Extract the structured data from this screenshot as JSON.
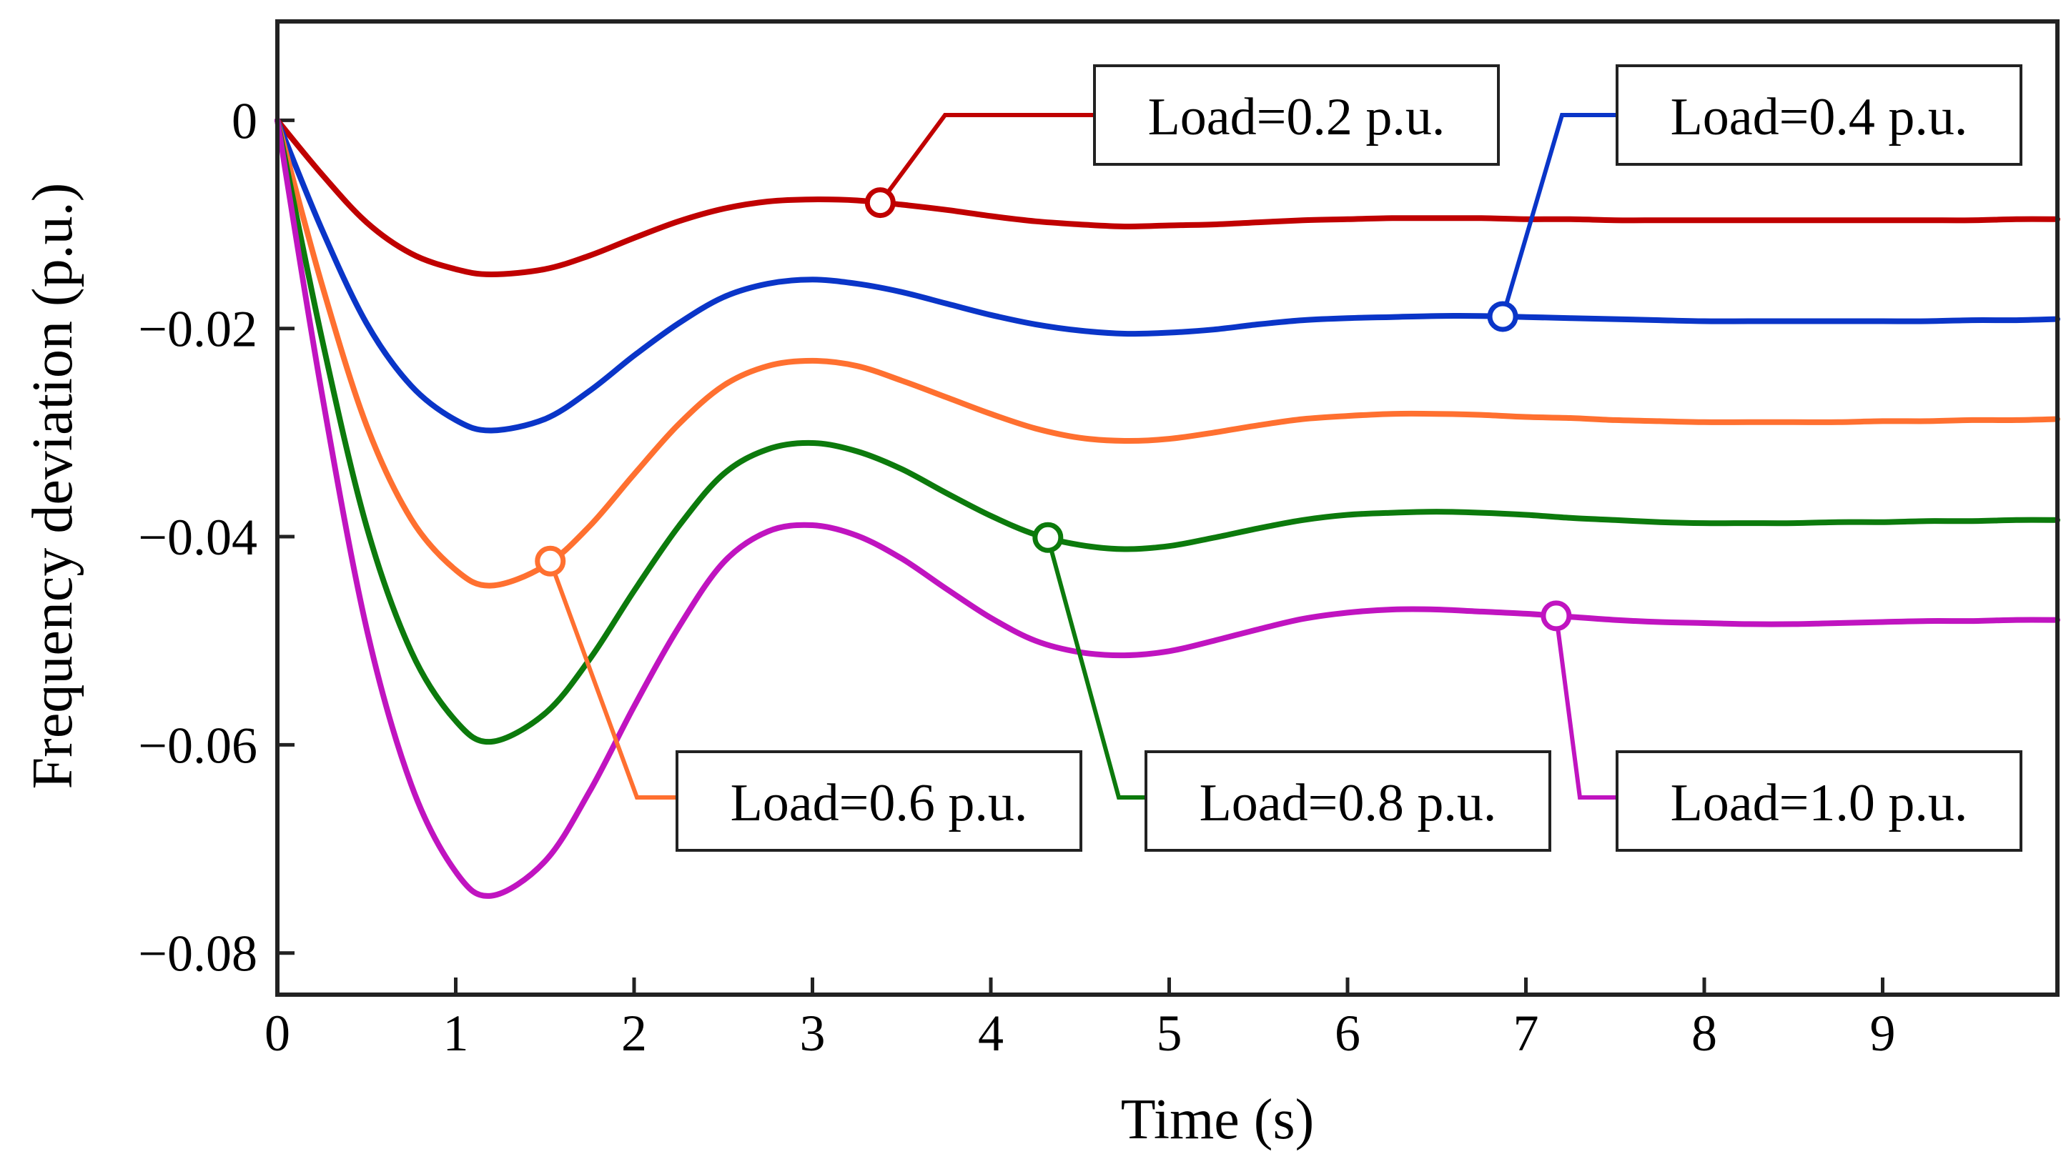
{
  "chart_data": {
    "type": "line",
    "title": "",
    "xlabel": "Time (s)",
    "ylabel": "Frequency deviation (p.u.)",
    "xlim": [
      0,
      9.98
    ],
    "ylim": [
      -0.084,
      0.0095
    ],
    "x_ticks": [
      0,
      1,
      2,
      3,
      4,
      5,
      6,
      7,
      8,
      9
    ],
    "x_tick_labels": [
      "0",
      "1",
      "2",
      "3",
      "4",
      "5",
      "6",
      "7",
      "8",
      "9"
    ],
    "y_ticks": [
      0,
      -0.02,
      -0.04,
      -0.06,
      -0.08
    ],
    "y_tick_labels": [
      "0",
      "−0.02",
      "−0.04",
      "−0.06",
      "−0.08"
    ],
    "grid": false,
    "x": [
      0,
      0.25,
      0.5,
      0.75,
      1.0,
      1.2,
      1.5,
      1.75,
      2.0,
      2.25,
      2.5,
      2.75,
      3.0,
      3.25,
      3.5,
      3.75,
      4.0,
      4.25,
      4.5,
      4.75,
      5.0,
      5.25,
      5.5,
      5.75,
      6.0,
      6.25,
      6.5,
      6.75,
      7.0,
      7.25,
      7.5,
      7.75,
      8.0,
      8.25,
      8.5,
      8.75,
      9.0,
      9.25,
      9.5,
      9.75,
      9.98
    ],
    "series": [
      {
        "name": "Load=0.2 p.u.",
        "label": "Load=0.2 p.u.",
        "color": "#c00000",
        "marker_x": 3.38,
        "values": [
          0,
          -0.0052,
          -0.0098,
          -0.0128,
          -0.0143,
          -0.0148,
          -0.0143,
          -0.013,
          -0.0113,
          -0.0097,
          -0.0085,
          -0.0078,
          -0.0076,
          -0.0077,
          -0.0081,
          -0.0086,
          -0.0092,
          -0.0097,
          -0.01,
          -0.0102,
          -0.0101,
          -0.01,
          -0.0098,
          -0.0096,
          -0.0095,
          -0.0094,
          -0.0094,
          -0.0094,
          -0.0095,
          -0.0095,
          -0.0096,
          -0.0096,
          -0.0096,
          -0.0096,
          -0.0096,
          -0.0096,
          -0.0096,
          -0.0096,
          -0.0096,
          -0.0095,
          -0.0095
        ]
      },
      {
        "name": "Load=0.4 p.u.",
        "label": "Load=0.4 p.u.",
        "color": "#0a35c8",
        "marker_x": 6.87,
        "values": [
          0,
          -0.0105,
          -0.0195,
          -0.0255,
          -0.0288,
          -0.0298,
          -0.0287,
          -0.026,
          -0.0226,
          -0.0195,
          -0.017,
          -0.0157,
          -0.0153,
          -0.0157,
          -0.0165,
          -0.0176,
          -0.0187,
          -0.0196,
          -0.0202,
          -0.0205,
          -0.0204,
          -0.0201,
          -0.0196,
          -0.0192,
          -0.019,
          -0.0189,
          -0.0188,
          -0.0188,
          -0.0189,
          -0.019,
          -0.0191,
          -0.0192,
          -0.0193,
          -0.0193,
          -0.0193,
          -0.0193,
          -0.0193,
          -0.0193,
          -0.0192,
          -0.0192,
          -0.0191
        ]
      },
      {
        "name": "Load=0.6 p.u.",
        "label": "Load=0.6 p.u.",
        "color": "#ff7030",
        "marker_x": 1.53,
        "values": [
          0,
          -0.0158,
          -0.0293,
          -0.0383,
          -0.0432,
          -0.0447,
          -0.0428,
          -0.039,
          -0.034,
          -0.0292,
          -0.0255,
          -0.0236,
          -0.0231,
          -0.0236,
          -0.025,
          -0.0266,
          -0.0282,
          -0.0296,
          -0.0305,
          -0.0308,
          -0.0306,
          -0.03,
          -0.0293,
          -0.0287,
          -0.0284,
          -0.0282,
          -0.0282,
          -0.0283,
          -0.0285,
          -0.0286,
          -0.0288,
          -0.0289,
          -0.029,
          -0.029,
          -0.029,
          -0.029,
          -0.0289,
          -0.0289,
          -0.0288,
          -0.0288,
          -0.0287
        ]
      },
      {
        "name": "Load=0.8 p.u.",
        "label": "Load=0.8 p.u.",
        "color": "#0c7a0c",
        "marker_x": 4.32,
        "values": [
          0,
          -0.021,
          -0.039,
          -0.051,
          -0.0577,
          -0.0597,
          -0.057,
          -0.0518,
          -0.0452,
          -0.039,
          -0.034,
          -0.0316,
          -0.031,
          -0.0318,
          -0.0335,
          -0.0358,
          -0.038,
          -0.0398,
          -0.0408,
          -0.0412,
          -0.0409,
          -0.0401,
          -0.0392,
          -0.0384,
          -0.0379,
          -0.0377,
          -0.0376,
          -0.0377,
          -0.0379,
          -0.0382,
          -0.0384,
          -0.0386,
          -0.0387,
          -0.0387,
          -0.0387,
          -0.0386,
          -0.0386,
          -0.0385,
          -0.0385,
          -0.0384,
          -0.0384
        ]
      },
      {
        "name": "Load=1.0 p.u.",
        "label": "Load=1.0 p.u.",
        "color": "#c014c0",
        "marker_x": 7.17,
        "values": [
          0,
          -0.0263,
          -0.0488,
          -0.0638,
          -0.0722,
          -0.0745,
          -0.0712,
          -0.0645,
          -0.0563,
          -0.0487,
          -0.0425,
          -0.0395,
          -0.0389,
          -0.0399,
          -0.0421,
          -0.045,
          -0.0478,
          -0.05,
          -0.0511,
          -0.0514,
          -0.051,
          -0.05,
          -0.0489,
          -0.0479,
          -0.0473,
          -0.047,
          -0.047,
          -0.0472,
          -0.0474,
          -0.0477,
          -0.048,
          -0.0482,
          -0.0483,
          -0.0484,
          -0.0484,
          -0.0483,
          -0.0482,
          -0.0481,
          -0.0481,
          -0.048,
          -0.048
        ]
      }
    ]
  }
}
